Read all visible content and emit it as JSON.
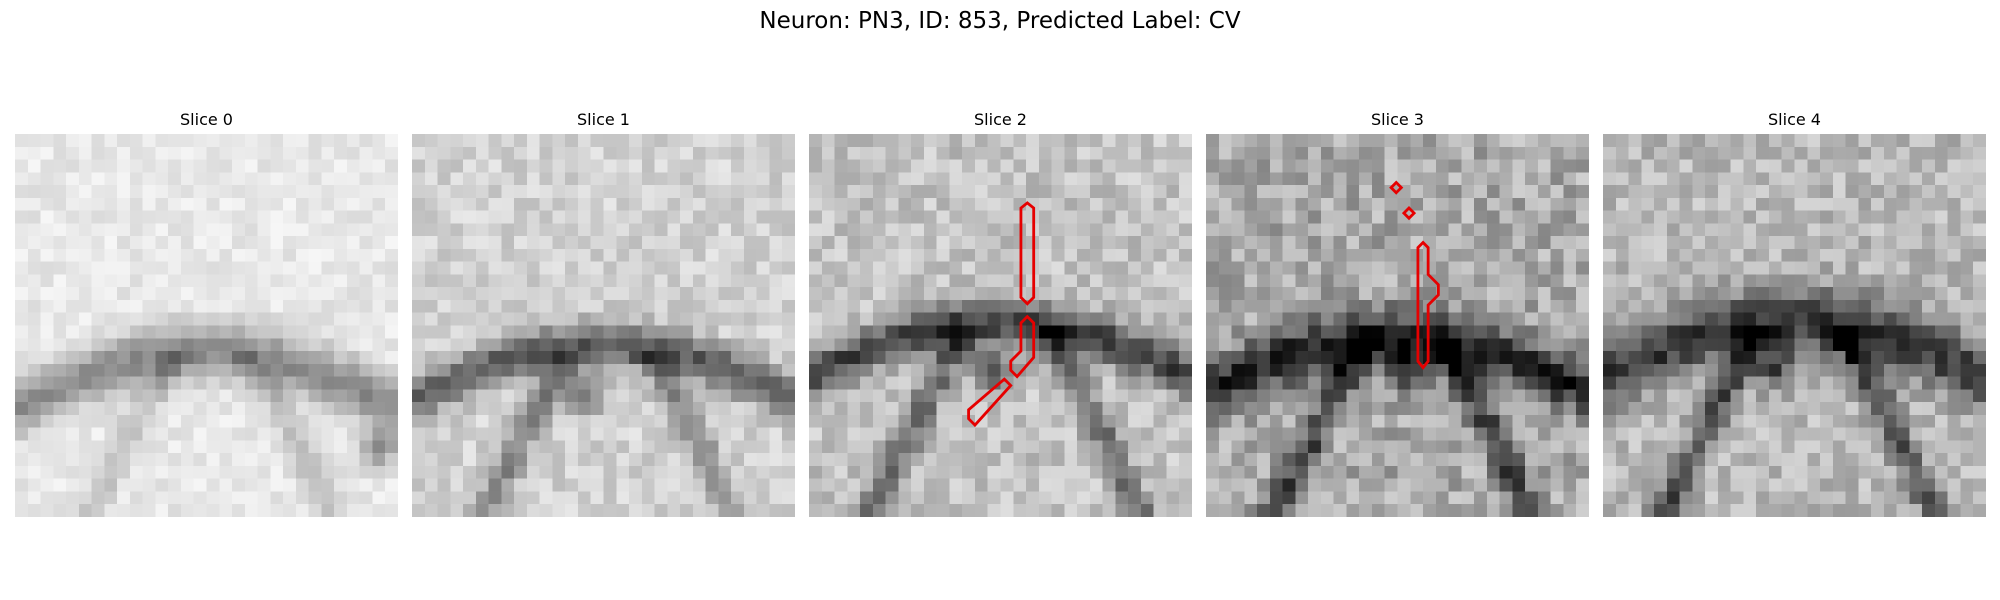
{
  "figure": {
    "title": "Neuron: PN3, ID: 853, Predicted Label: CV"
  },
  "panels": [
    {
      "title": "Slice 0",
      "style": "light",
      "contours": []
    },
    {
      "title": "Slice 1",
      "style": "light-mid",
      "contours": []
    },
    {
      "title": "Slice 2",
      "style": "mid",
      "contours": [
        "vertical-upper",
        "diagonal-lower"
      ]
    },
    {
      "title": "Slice 3",
      "style": "dark-noisy",
      "contours": [
        "small-diamond-1",
        "small-diamond-2",
        "vertical-long"
      ]
    },
    {
      "title": "Slice 4",
      "style": "mid-dark",
      "contours": []
    }
  ],
  "colors": {
    "contour": "#e60000",
    "background": "#ffffff"
  }
}
